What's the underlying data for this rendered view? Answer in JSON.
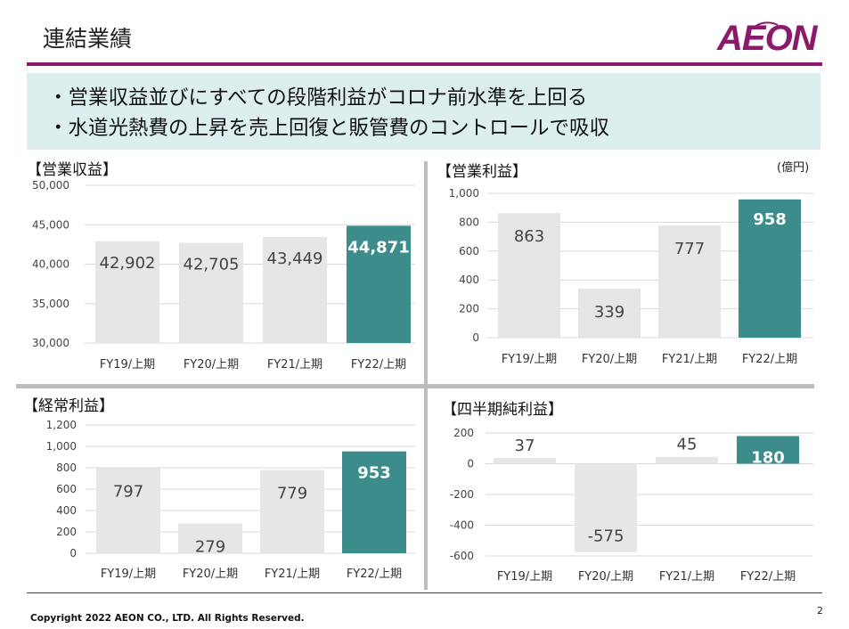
{
  "page": {
    "title": "連結業績",
    "logo_text": "AEON",
    "unit": "(億円)",
    "copyright": "Copyright 2022 AEON CO., LTD. All Rights Reserved.",
    "page_number": "2"
  },
  "summary": [
    "・営業収益並びにすべての段階利益がコロナ前水準を上回る",
    "・水道光熱費の上昇を売上回復と販管費のコントロールで吸収"
  ],
  "colors": {
    "brand": "#8b1a6b",
    "highlight_bar": "#3d8c8c",
    "base_bar": "#e6e6e6",
    "summary_bg": "#dcefee"
  },
  "chart_data": [
    {
      "type": "bar",
      "title": "【営業収益】",
      "categories": [
        "FY19/上期",
        "FY20/上期",
        "FY21/上期",
        "FY22/上期"
      ],
      "values": [
        42902,
        42705,
        43449,
        44871
      ],
      "labels": [
        "42,902",
        "42,705",
        "43,449",
        "44,871"
      ],
      "ylim": [
        30000,
        50000
      ],
      "yticks": [
        30000,
        35000,
        40000,
        45000,
        50000
      ],
      "ytick_labels": [
        "30,000",
        "35,000",
        "40,000",
        "45,000",
        "50,000"
      ],
      "grid": true,
      "highlight_index": 3
    },
    {
      "type": "bar",
      "title": "【営業利益】",
      "categories": [
        "FY19/上期",
        "FY20/上期",
        "FY21/上期",
        "FY22/上期"
      ],
      "values": [
        863,
        339,
        777,
        958
      ],
      "labels": [
        "863",
        "339",
        "777",
        "958"
      ],
      "ylim": [
        0,
        1000
      ],
      "yticks": [
        0,
        200,
        400,
        600,
        800,
        1000
      ],
      "ytick_labels": [
        "0",
        "200",
        "400",
        "600",
        "800",
        "1,000"
      ],
      "grid": true,
      "highlight_index": 3
    },
    {
      "type": "bar",
      "title": "【経常利益】",
      "categories": [
        "FY19/上期",
        "FY20/上期",
        "FY21/上期",
        "FY22/上期"
      ],
      "values": [
        797,
        279,
        779,
        953
      ],
      "labels": [
        "797",
        "279",
        "779",
        "953"
      ],
      "ylim": [
        0,
        1200
      ],
      "yticks": [
        0,
        200,
        400,
        600,
        800,
        1000,
        1200
      ],
      "ytick_labels": [
        "0",
        "200",
        "400",
        "600",
        "800",
        "1,000",
        "1,200"
      ],
      "grid": true,
      "highlight_index": 3
    },
    {
      "type": "bar",
      "title": "【四半期純利益】",
      "categories": [
        "FY19/上期",
        "FY20/上期",
        "FY21/上期",
        "FY22/上期"
      ],
      "values": [
        37,
        -575,
        45,
        180
      ],
      "labels": [
        "37",
        "-575",
        "45",
        "180"
      ],
      "ylim": [
        -600,
        200
      ],
      "yticks": [
        -600,
        -400,
        -200,
        0,
        200
      ],
      "ytick_labels": [
        "-600",
        "-400",
        "-200",
        "0",
        "200"
      ],
      "grid": true,
      "highlight_index": 3
    }
  ]
}
